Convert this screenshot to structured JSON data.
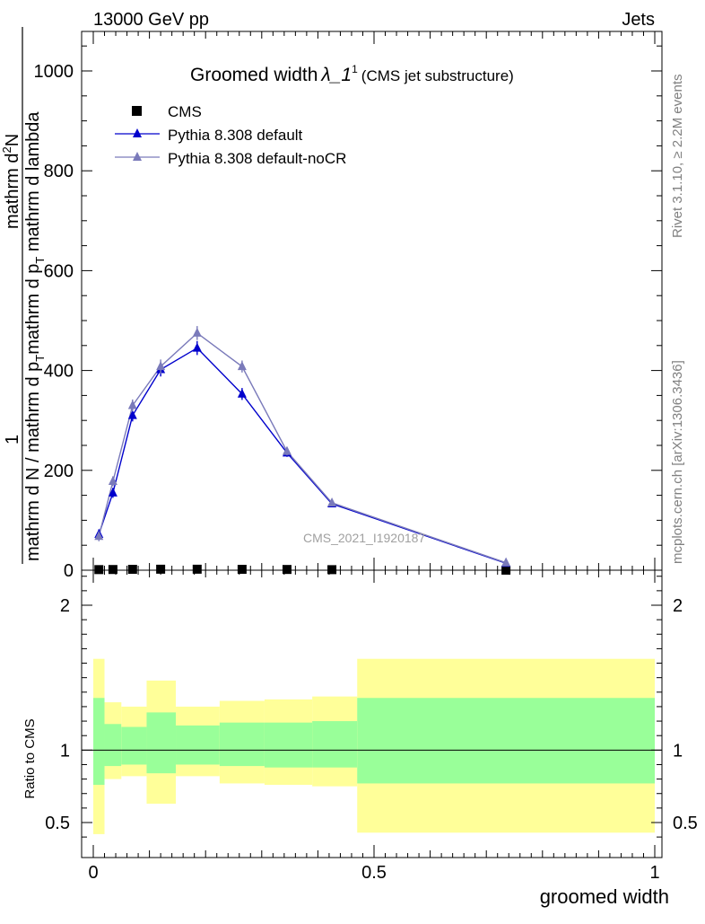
{
  "header": {
    "left": "13000 GeV pp",
    "right": "Jets"
  },
  "side_labels": {
    "rivet": "Rivet 3.1.10, ≥ 2.2M events",
    "mcplots": "mcplots.cern.ch [arXiv:1306.3436]"
  },
  "chart_data": [
    {
      "type": "line",
      "title_main": "Groomed width",
      "title_symbol": "λ_1",
      "title_sup": "1",
      "title_paren": "(CMS jet substructure)",
      "ylabel_parts": {
        "num": "mathrm d²N",
        "num_sup": "2",
        "den_line": "mathrm d N / mathrm d p",
        "den_sub": "T",
        "den_mid": "mathrm d p",
        "den_sub2": "T",
        "den_end": "mathrm d lambda",
        "frac_one": "1"
      },
      "ylabel_top": "mathrm d²N",
      "ylabel_bottom_left": "1",
      "ylabel_full": "mathrm d N / mathrm d p_T mathrm d p_T mathrm d lambda",
      "xlim": [
        0,
        1
      ],
      "ylim": [
        0,
        1000
      ],
      "ytick_labels": [
        "0",
        "200",
        "400",
        "600",
        "800",
        "1000"
      ],
      "ytick_values": [
        0,
        200,
        400,
        600,
        800,
        1000
      ],
      "watermark": "CMS_2021_I1920187",
      "legend": [
        {
          "name": "CMS",
          "color": "#000000",
          "marker": "square"
        },
        {
          "name": "Pythia 8.308 default",
          "color": "#0000cc",
          "marker": "triangle"
        },
        {
          "name": "Pythia 8.308 default-noCR",
          "color": "#7a7aba",
          "marker": "triangle"
        }
      ],
      "series": [
        {
          "name": "CMS",
          "x": [
            0.01,
            0.035,
            0.07,
            0.12,
            0.185,
            0.265,
            0.345,
            0.425,
            0.735
          ],
          "y": [
            1.2,
            1.4,
            1.8,
            2.0,
            2.0,
            1.8,
            1.5,
            1.1,
            0.1
          ]
        },
        {
          "name": "Pythia 8.308 default",
          "x": [
            0.01,
            0.035,
            0.07,
            0.12,
            0.185,
            0.265,
            0.345,
            0.425,
            0.735
          ],
          "y": [
            72,
            155,
            310,
            402,
            445,
            353,
            235,
            133,
            14
          ],
          "err": [
            10,
            10,
            12,
            14,
            14,
            12,
            8,
            6,
            3
          ]
        },
        {
          "name": "Pythia 8.308 default-noCR",
          "x": [
            0.01,
            0.035,
            0.07,
            0.12,
            0.185,
            0.265,
            0.345,
            0.425,
            0.735
          ],
          "y": [
            68,
            178,
            330,
            408,
            475,
            408,
            238,
            135,
            15
          ],
          "err": [
            10,
            10,
            12,
            14,
            14,
            12,
            8,
            6,
            3
          ]
        }
      ]
    },
    {
      "type": "area",
      "ylabel": "Ratio to CMS",
      "xlabel": "groomed width",
      "xlim": [
        0,
        1
      ],
      "ylim": [
        0.35,
        2.3
      ],
      "ytick_labels": [
        "0.5",
        "1",
        "2"
      ],
      "ytick_values": [
        0.5,
        1,
        2
      ],
      "xtick_labels": [
        "0",
        "0.5",
        "1"
      ],
      "xtick_values": [
        0,
        0.5,
        1
      ],
      "bins": [
        {
          "lo": 0.0,
          "hi": 0.02,
          "stat_lo": 0.76,
          "stat_hi": 1.36,
          "sys_lo": 0.42,
          "sys_hi": 1.63
        },
        {
          "lo": 0.02,
          "hi": 0.05,
          "stat_lo": 0.89,
          "stat_hi": 1.18,
          "sys_lo": 0.8,
          "sys_hi": 1.33
        },
        {
          "lo": 0.05,
          "hi": 0.095,
          "stat_lo": 0.9,
          "stat_hi": 1.16,
          "sys_lo": 0.82,
          "sys_hi": 1.3
        },
        {
          "lo": 0.095,
          "hi": 0.147,
          "stat_lo": 0.84,
          "stat_hi": 1.26,
          "sys_lo": 0.63,
          "sys_hi": 1.48
        },
        {
          "lo": 0.147,
          "hi": 0.225,
          "stat_lo": 0.9,
          "stat_hi": 1.17,
          "sys_lo": 0.82,
          "sys_hi": 1.3
        },
        {
          "lo": 0.225,
          "hi": 0.305,
          "stat_lo": 0.89,
          "stat_hi": 1.19,
          "sys_lo": 0.77,
          "sys_hi": 1.34
        },
        {
          "lo": 0.305,
          "hi": 0.39,
          "stat_lo": 0.88,
          "stat_hi": 1.19,
          "sys_lo": 0.76,
          "sys_hi": 1.35
        },
        {
          "lo": 0.39,
          "hi": 0.47,
          "stat_lo": 0.88,
          "stat_hi": 1.2,
          "sys_lo": 0.75,
          "sys_hi": 1.37
        },
        {
          "lo": 0.47,
          "hi": 1.0,
          "stat_lo": 0.77,
          "stat_hi": 1.36,
          "sys_lo": 0.43,
          "sys_hi": 1.63
        }
      ],
      "colors": {
        "stat": "#99ff99",
        "sys": "#ffff99",
        "ref_line": "#000000"
      }
    }
  ]
}
